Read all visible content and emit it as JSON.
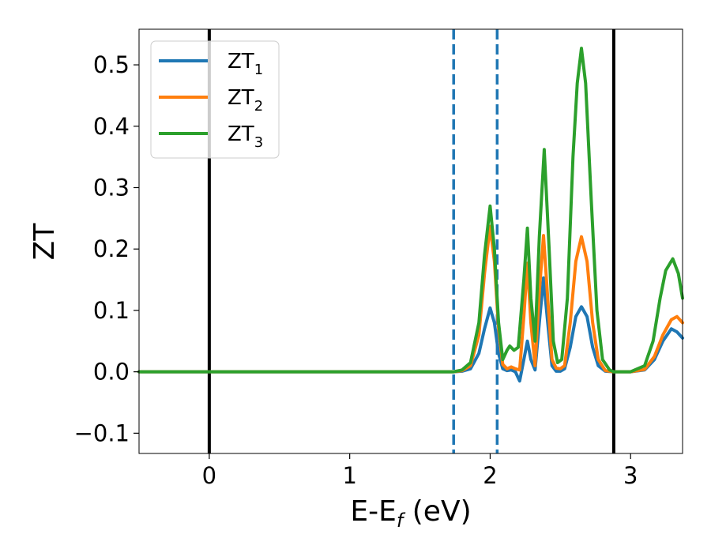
{
  "chart_data": {
    "type": "line",
    "xlabel": {
      "main": "E-E",
      "sub": "f",
      "unit": " (eV)"
    },
    "ylabel": "ZT",
    "xlim": [
      -0.5,
      3.37
    ],
    "ylim": [
      -0.133,
      0.558
    ],
    "xticks": [
      {
        "value": 0,
        "label": "0"
      },
      {
        "value": 1,
        "label": "1"
      },
      {
        "value": 2,
        "label": "2"
      },
      {
        "value": 3,
        "label": "3"
      }
    ],
    "yticks": [
      {
        "value": -0.1,
        "label": "−0.1"
      },
      {
        "value": 0.0,
        "label": "0.0"
      },
      {
        "value": 0.1,
        "label": "0.1"
      },
      {
        "value": 0.2,
        "label": "0.2"
      },
      {
        "value": 0.3,
        "label": "0.3"
      },
      {
        "value": 0.4,
        "label": "0.4"
      },
      {
        "value": 0.5,
        "label": "0.5"
      }
    ],
    "legend_position": "top-left",
    "vlines": [
      {
        "x": 0.0,
        "style": "solid",
        "color": "#000000"
      },
      {
        "x": 1.74,
        "style": "dashed",
        "color": "#1f77b4"
      },
      {
        "x": 2.05,
        "style": "dashed",
        "color": "#1f77b4"
      },
      {
        "x": 2.88,
        "style": "solid",
        "color": "#000000"
      }
    ],
    "series": [
      {
        "name": "ZT",
        "sub": "1",
        "color": "#1f77b4",
        "points": [
          [
            -0.5,
            0
          ],
          [
            1.74,
            0
          ],
          [
            1.8,
            0.001
          ],
          [
            1.86,
            0.005
          ],
          [
            1.92,
            0.03
          ],
          [
            1.96,
            0.07
          ],
          [
            2.0,
            0.104
          ],
          [
            2.03,
            0.08
          ],
          [
            2.06,
            0.03
          ],
          [
            2.09,
            0.005
          ],
          [
            2.12,
            0.002
          ],
          [
            2.15,
            0.003
          ],
          [
            2.18,
            0.0
          ],
          [
            2.21,
            -0.015
          ],
          [
            2.24,
            0.02
          ],
          [
            2.265,
            0.05
          ],
          [
            2.29,
            0.02
          ],
          [
            2.32,
            0.003
          ],
          [
            2.35,
            0.08
          ],
          [
            2.38,
            0.153
          ],
          [
            2.41,
            0.08
          ],
          [
            2.44,
            0.01
          ],
          [
            2.47,
            0.001
          ],
          [
            2.5,
            0.001
          ],
          [
            2.53,
            0.005
          ],
          [
            2.57,
            0.04
          ],
          [
            2.61,
            0.09
          ],
          [
            2.65,
            0.106
          ],
          [
            2.69,
            0.09
          ],
          [
            2.73,
            0.04
          ],
          [
            2.77,
            0.01
          ],
          [
            2.82,
            0.001
          ],
          [
            2.88,
            0.0
          ],
          [
            3.0,
            0.0
          ],
          [
            3.1,
            0.003
          ],
          [
            3.17,
            0.02
          ],
          [
            3.23,
            0.05
          ],
          [
            3.29,
            0.07
          ],
          [
            3.33,
            0.065
          ],
          [
            3.37,
            0.055
          ]
        ]
      },
      {
        "name": "ZT",
        "sub": "2",
        "color": "#ff7f0e",
        "points": [
          [
            -0.5,
            0
          ],
          [
            1.74,
            0
          ],
          [
            1.8,
            0.002
          ],
          [
            1.86,
            0.01
          ],
          [
            1.92,
            0.06
          ],
          [
            1.96,
            0.16
          ],
          [
            2.0,
            0.237
          ],
          [
            2.03,
            0.18
          ],
          [
            2.06,
            0.07
          ],
          [
            2.09,
            0.012
          ],
          [
            2.12,
            0.005
          ],
          [
            2.15,
            0.008
          ],
          [
            2.18,
            0.005
          ],
          [
            2.21,
            0.003
          ],
          [
            2.24,
            0.09
          ],
          [
            2.265,
            0.177
          ],
          [
            2.29,
            0.08
          ],
          [
            2.32,
            0.01
          ],
          [
            2.35,
            0.13
          ],
          [
            2.38,
            0.222
          ],
          [
            2.41,
            0.12
          ],
          [
            2.44,
            0.02
          ],
          [
            2.47,
            0.006
          ],
          [
            2.5,
            0.005
          ],
          [
            2.53,
            0.01
          ],
          [
            2.57,
            0.08
          ],
          [
            2.61,
            0.18
          ],
          [
            2.65,
            0.22
          ],
          [
            2.69,
            0.18
          ],
          [
            2.73,
            0.08
          ],
          [
            2.77,
            0.02
          ],
          [
            2.82,
            0.002
          ],
          [
            2.88,
            0.0
          ],
          [
            3.0,
            0.0
          ],
          [
            3.1,
            0.004
          ],
          [
            3.17,
            0.025
          ],
          [
            3.23,
            0.06
          ],
          [
            3.29,
            0.085
          ],
          [
            3.33,
            0.09
          ],
          [
            3.37,
            0.08
          ]
        ]
      },
      {
        "name": "ZT",
        "sub": "3",
        "color": "#2ca02c",
        "points": [
          [
            -0.5,
            0
          ],
          [
            1.74,
            0
          ],
          [
            1.8,
            0.003
          ],
          [
            1.86,
            0.015
          ],
          [
            1.92,
            0.08
          ],
          [
            1.96,
            0.19
          ],
          [
            2.0,
            0.27
          ],
          [
            2.03,
            0.2
          ],
          [
            2.06,
            0.08
          ],
          [
            2.09,
            0.02
          ],
          [
            2.12,
            0.035
          ],
          [
            2.14,
            0.042
          ],
          [
            2.17,
            0.035
          ],
          [
            2.2,
            0.04
          ],
          [
            2.24,
            0.15
          ],
          [
            2.265,
            0.234
          ],
          [
            2.29,
            0.12
          ],
          [
            2.32,
            0.05
          ],
          [
            2.35,
            0.22
          ],
          [
            2.385,
            0.362
          ],
          [
            2.42,
            0.2
          ],
          [
            2.45,
            0.05
          ],
          [
            2.48,
            0.015
          ],
          [
            2.51,
            0.02
          ],
          [
            2.55,
            0.12
          ],
          [
            2.59,
            0.35
          ],
          [
            2.62,
            0.47
          ],
          [
            2.65,
            0.527
          ],
          [
            2.68,
            0.47
          ],
          [
            2.72,
            0.28
          ],
          [
            2.76,
            0.1
          ],
          [
            2.8,
            0.02
          ],
          [
            2.85,
            0.003
          ],
          [
            2.88,
            0.0
          ],
          [
            3.0,
            0.0
          ],
          [
            3.1,
            0.01
          ],
          [
            3.16,
            0.05
          ],
          [
            3.21,
            0.12
          ],
          [
            3.25,
            0.165
          ],
          [
            3.3,
            0.184
          ],
          [
            3.34,
            0.16
          ],
          [
            3.37,
            0.12
          ]
        ]
      }
    ]
  }
}
